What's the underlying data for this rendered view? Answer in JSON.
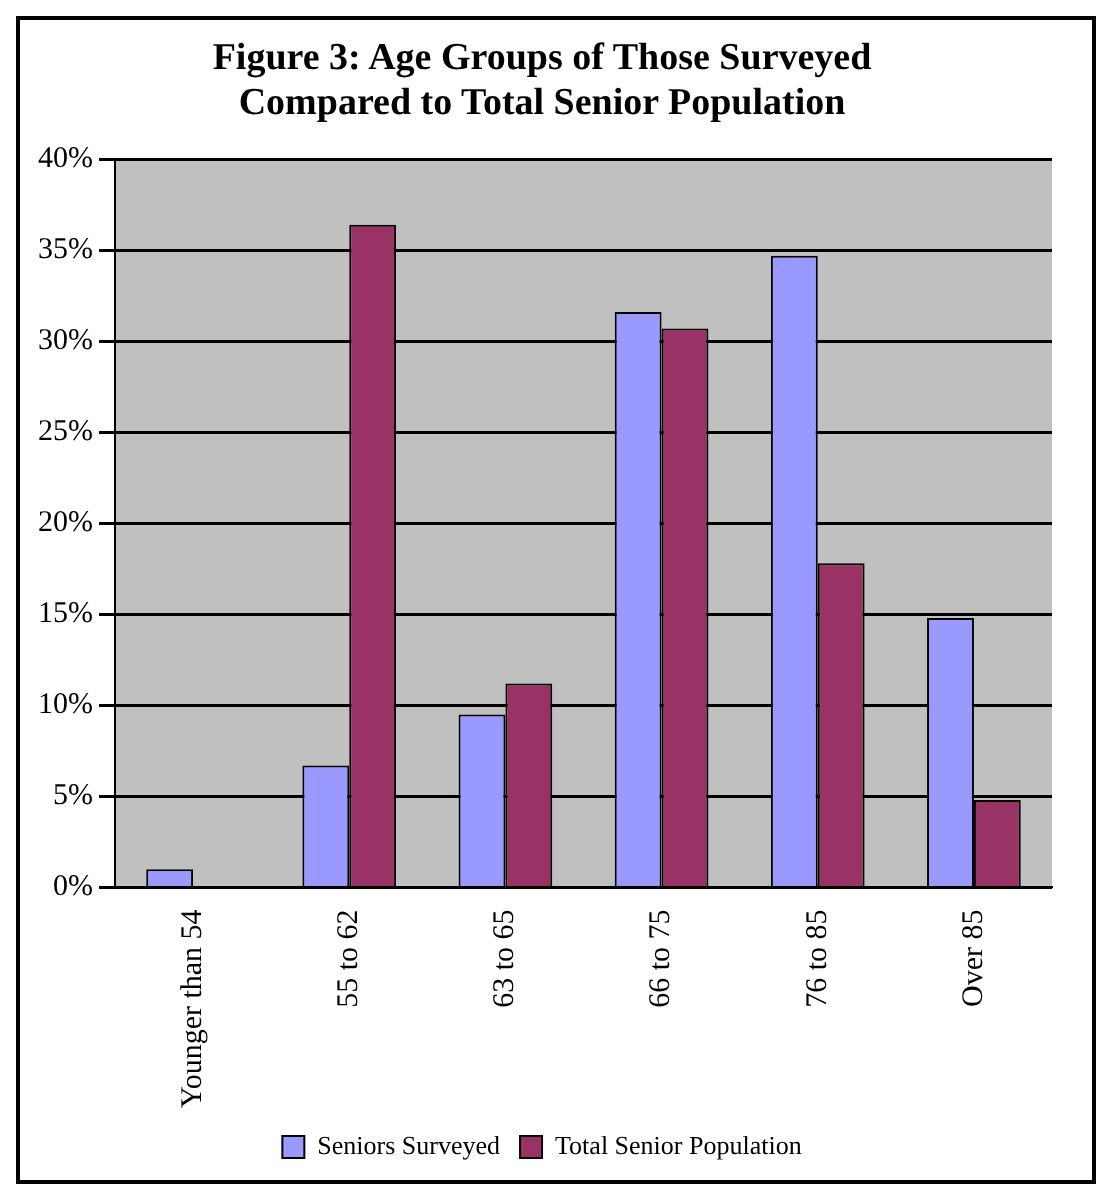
{
  "chart_data": {
    "type": "bar",
    "title": "Figure 3: Age Groups of Those Surveyed Compared to Total Senior Population",
    "categories": [
      "Younger than 54",
      "55 to 62",
      "63 to 65",
      "66 to 75",
      "76 to 85",
      "Over 85"
    ],
    "series": [
      {
        "name": "Seniors Surveyed",
        "color": "#9999ff",
        "values": [
          1.0,
          6.7,
          9.5,
          31.6,
          34.7,
          14.8
        ]
      },
      {
        "name": "Total Senior Population",
        "color": "#993366",
        "values": [
          0,
          36.4,
          11.2,
          30.7,
          17.8,
          4.8
        ]
      }
    ],
    "ylim": [
      0,
      40
    ],
    "yticks": [
      {
        "value": 0,
        "label": "0%"
      },
      {
        "value": 5,
        "label": "5%"
      },
      {
        "value": 10,
        "label": "10%"
      },
      {
        "value": 15,
        "label": "15%"
      },
      {
        "value": 20,
        "label": "20%"
      },
      {
        "value": 25,
        "label": "25%"
      },
      {
        "value": 30,
        "label": "30%"
      },
      {
        "value": 35,
        "label": "35%"
      },
      {
        "value": 40,
        "label": "40%"
      }
    ],
    "grid": "y",
    "legend": "bottom"
  }
}
